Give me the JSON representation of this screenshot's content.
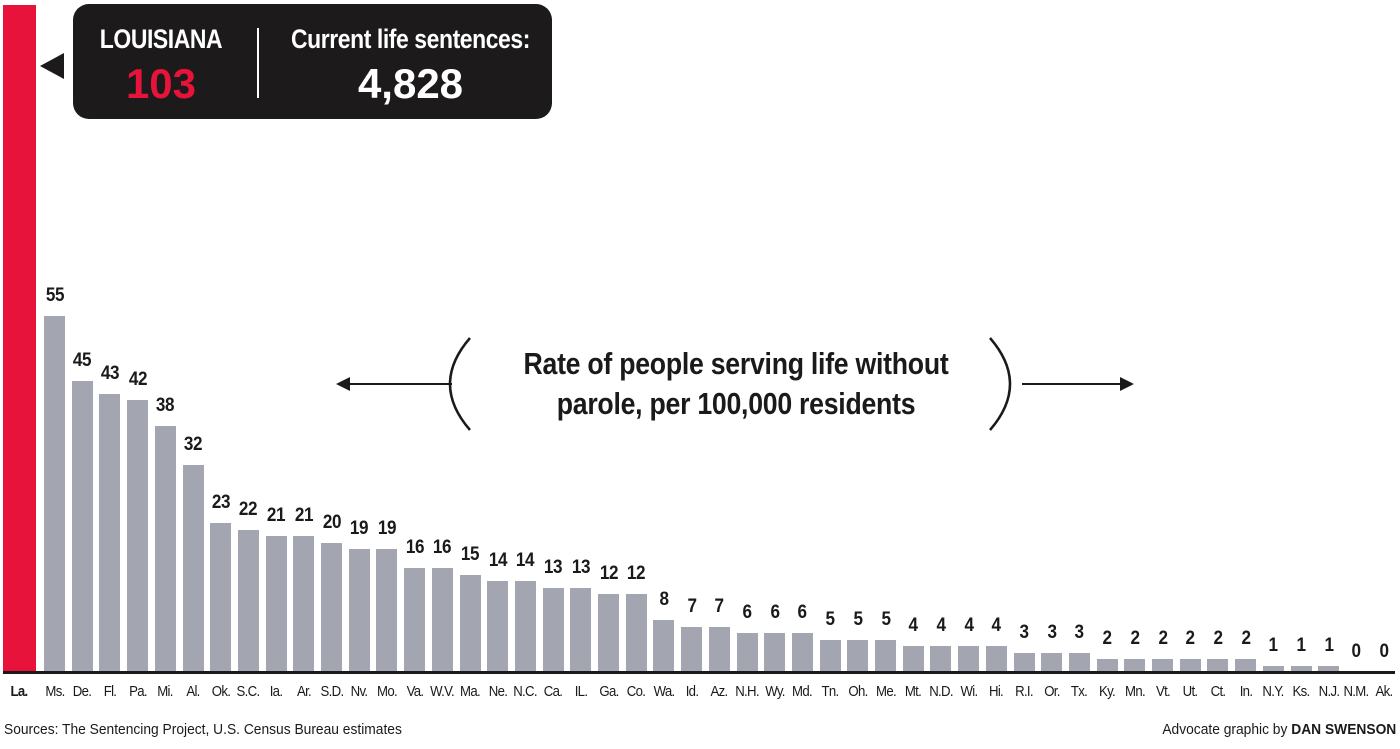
{
  "callout": {
    "state": "LOUISIANA",
    "rate": "103",
    "label": "Current life sentences:",
    "count": "4,828"
  },
  "annotation": {
    "text": "Rate of people serving life without parole, per 100,000 residents"
  },
  "footer": {
    "source": "Sources: The Sentencing Project, U.S. Census Bureau estimates",
    "credit_prefix": "Advocate graphic by ",
    "credit_name": "DAN SWENSON"
  },
  "colors": {
    "highlight": "#e8133b",
    "bar": "#a3a6b1",
    "callout_bg": "#1c1a1a",
    "text": "#1a1a1a"
  },
  "chart_data": {
    "type": "bar",
    "title": "Rate of people serving life without parole, per 100,000 residents",
    "xlabel": "",
    "ylabel": "",
    "ylim": [
      0,
      103
    ],
    "grid": false,
    "highlight": "La.",
    "categories": [
      "La.",
      "Ms.",
      "De.",
      "Fl.",
      "Pa.",
      "Mi.",
      "Al.",
      "Ok.",
      "S.C.",
      "Ia.",
      "Ar.",
      "S.D.",
      "Nv.",
      "Mo.",
      "Va.",
      "W.V.",
      "Ma.",
      "Ne.",
      "N.C.",
      "Ca.",
      "IL.",
      "Ga.",
      "Co.",
      "Wa.",
      "Id.",
      "Az.",
      "N.H.",
      "Wy.",
      "Md.",
      "Tn.",
      "Oh.",
      "Me.",
      "Mt.",
      "N.D.",
      "Wi.",
      "Hi.",
      "R.I.",
      "Or.",
      "Tx.",
      "Ky.",
      "Mn.",
      "Vt.",
      "Ut.",
      "Ct.",
      "In.",
      "N.Y.",
      "Ks.",
      "N.J.",
      "N.M.",
      "Ak."
    ],
    "values": [
      103,
      55,
      45,
      43,
      42,
      38,
      32,
      23,
      22,
      21,
      21,
      20,
      19,
      19,
      16,
      16,
      15,
      14,
      14,
      13,
      13,
      12,
      12,
      8,
      7,
      7,
      6,
      6,
      6,
      5,
      5,
      5,
      4,
      4,
      4,
      4,
      3,
      3,
      3,
      2,
      2,
      2,
      2,
      2,
      2,
      1,
      1,
      1,
      0,
      0
    ]
  }
}
